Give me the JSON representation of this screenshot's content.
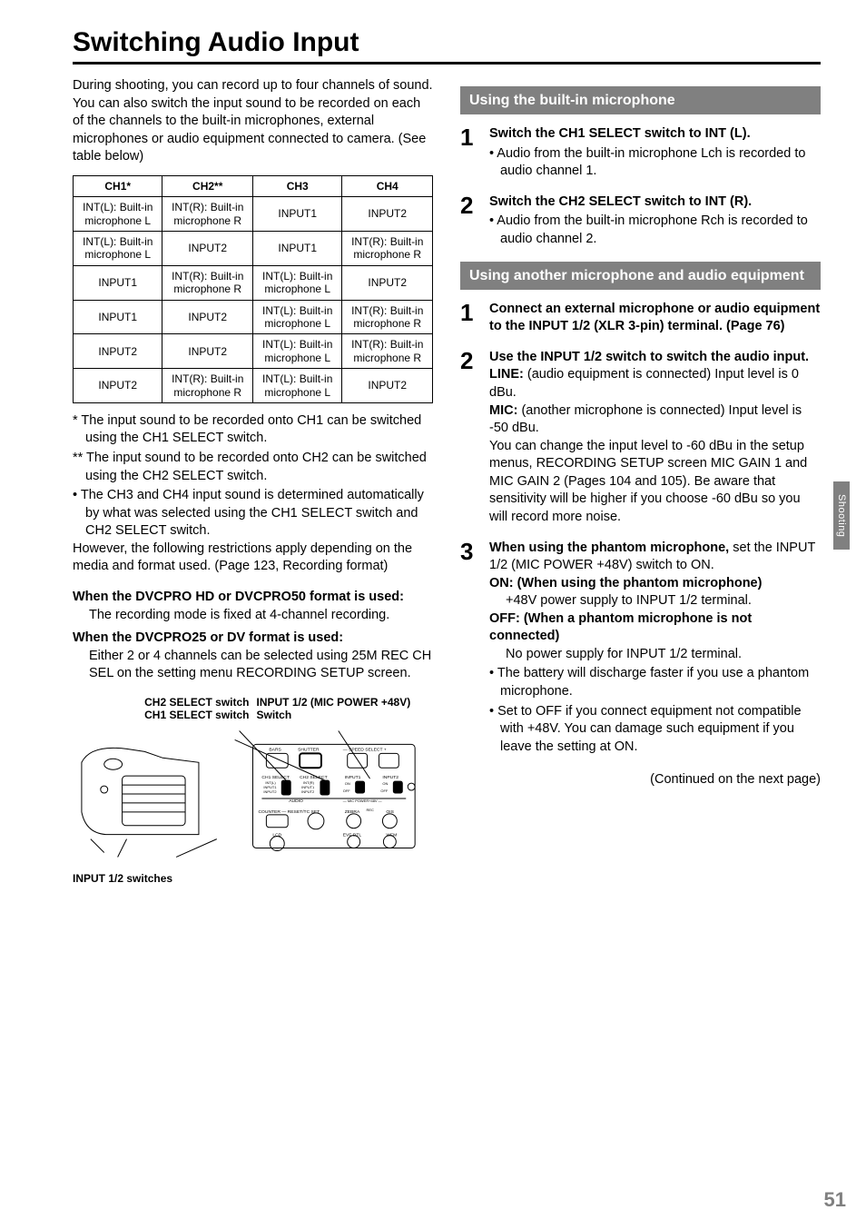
{
  "title": "Switching Audio Input",
  "intro": "During shooting, you can record up to four channels of sound. You can also switch the input sound to be recorded on each of the channels to the built-in microphones, external microphones or audio equipment connected to camera. (See table below)",
  "table": {
    "columns": [
      "CH1*",
      "CH2**",
      "CH3",
      "CH4"
    ],
    "rows": [
      [
        "INT(L): Built-in microphone L",
        "INT(R): Built-in microphone R",
        "INPUT1",
        "INPUT2"
      ],
      [
        "INT(L): Built-in microphone L",
        "INPUT2",
        "INPUT1",
        "INT(R): Built-in microphone R"
      ],
      [
        "INPUT1",
        "INT(R): Built-in microphone R",
        "INT(L): Built-in microphone L",
        "INPUT2"
      ],
      [
        "INPUT1",
        "INPUT2",
        "INT(L): Built-in microphone L",
        "INT(R): Built-in microphone R"
      ],
      [
        "INPUT2",
        "INPUT2",
        "INT(L): Built-in microphone L",
        "INT(R): Built-in microphone R"
      ],
      [
        "INPUT2",
        "INT(R): Built-in microphone R",
        "INT(L): Built-in microphone L",
        "INPUT2"
      ]
    ]
  },
  "footnotes": {
    "f1": "* The input sound to be recorded onto CH1 can be switched using the CH1 SELECT switch.",
    "f2": "** The input sound to be recorded onto CH2 can be switched using the CH2 SELECT switch.",
    "f3": "• The CH3 and CH4 input sound is determined automatically by what was selected using the CH1 SELECT switch and CH2 SELECT switch.",
    "however": "However, the following restrictions apply depending on the media and format used. (Page 123, Recording format)"
  },
  "formats": {
    "hd_head": "When the DVCPRO HD or DVCPRO50 format is used:",
    "hd_body": "The recording mode is fixed at 4-channel recording.",
    "dv_head": "When the DVCPRO25 or DV format is used:",
    "dv_body": "Either 2 or 4 channels can be selected using 25M REC CH SEL on the setting menu RECORDING SETUP screen."
  },
  "diagram_labels": {
    "ch2": "CH2 SELECT switch",
    "ch1": "CH1 SELECT switch",
    "input12mic": "INPUT 1/2 (MIC POWER +48V) Switch",
    "input12": "INPUT 1/2 switches"
  },
  "sec1": {
    "head": "Using the built-in microphone",
    "s1_title": "Switch the CH1 SELECT switch to INT (L).",
    "s1_b1": "• Audio from the built-in microphone Lch is recorded to audio channel 1.",
    "s2_title": "Switch the CH2 SELECT switch to INT (R).",
    "s2_b1": "• Audio from the built-in microphone Rch is recorded to audio channel 2."
  },
  "sec2": {
    "head": "Using another microphone and audio equipment",
    "s1_title": "Connect an external microphone or audio equipment to the INPUT 1/2 (XLR 3-pin) terminal. (Page 76)",
    "s2_title": "Use the INPUT 1/2 switch to switch the audio input.",
    "s2_line_label": "LINE:",
    "s2_line_body": " (audio equipment is connected) Input level is 0 dBu.",
    "s2_mic_label": "MIC:",
    "s2_mic_body": " (another microphone is connected) Input level is -50 dBu.",
    "s2_mic_extra": "You can change the input level to -60 dBu in the setup menus, RECORDING SETUP screen MIC GAIN 1 and MIC GAIN 2 (Pages 104 and 105). Be aware that sensitivity will be higher if you choose -60 dBu so you will record more noise.",
    "s3_title": "When using the phantom microphone,",
    "s3_body": "set the INPUT 1/2 (MIC POWER +48V) switch to ON.",
    "s3_on_label": "ON: (When using the phantom microphone)",
    "s3_on_body": "+48V power supply to INPUT 1/2 terminal.",
    "s3_off_label": "OFF: (When a phantom microphone is not connected)",
    "s3_off_body": "No power supply for INPUT 1/2 terminal.",
    "s3_b1": "• The battery will discharge faster if you use a phantom microphone.",
    "s3_b2": "• Set to OFF if you connect equipment not compatible with +48V. You can damage such equipment if you leave the setting at ON."
  },
  "continued": "(Continued on the next page)",
  "side_tab": "Shooting",
  "page_number": "51",
  "colors": {
    "section_bg": "#808080",
    "section_fg": "#ffffff",
    "page_num_color": "#808080"
  }
}
